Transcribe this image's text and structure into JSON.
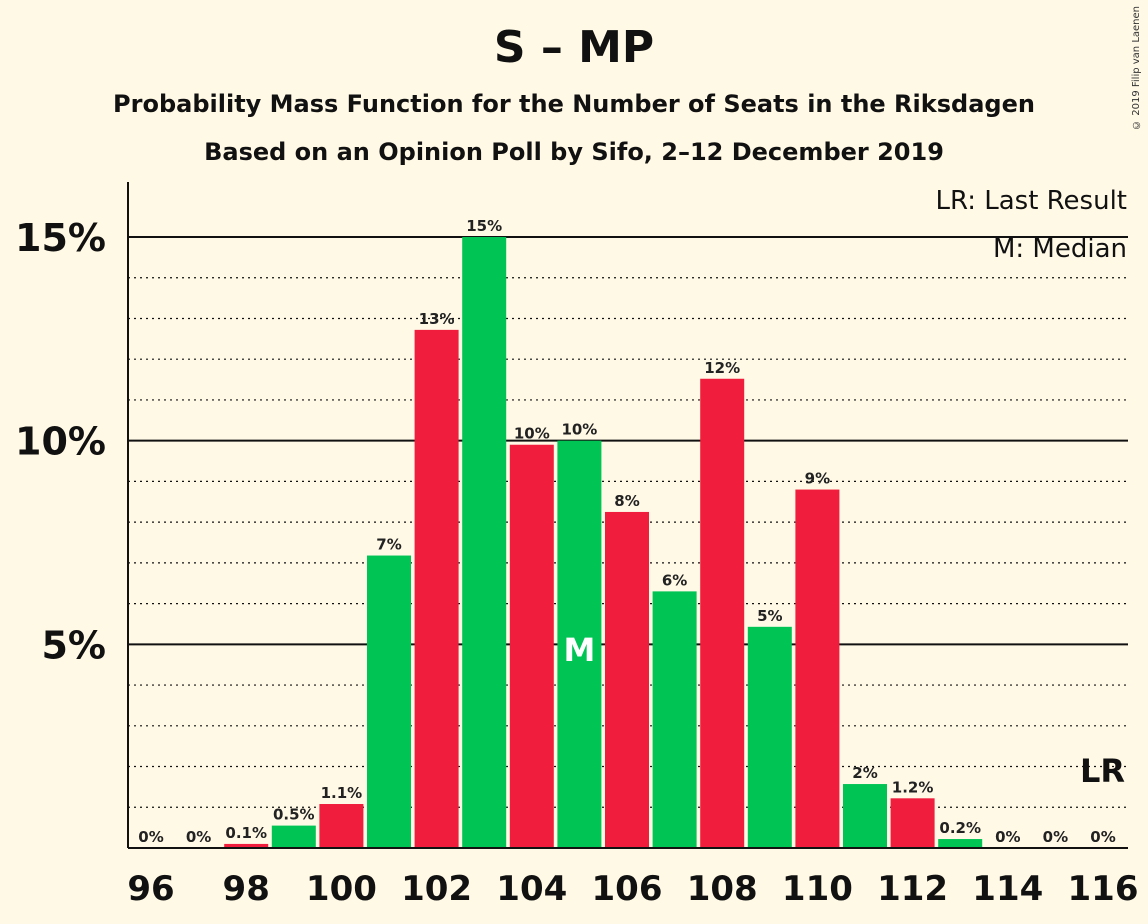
{
  "header": {
    "title": "S – MP",
    "subtitle_line1": "Probability Mass Function for the Number of Seats in the Riksdagen",
    "subtitle_line2": "Based on an Opinion Poll by Sifo, 2–12 December 2019",
    "copyright": "© 2019 Filip van Laenen"
  },
  "legend": {
    "last_result": "LR: Last Result",
    "median": "M: Median",
    "lr_marker": "LR",
    "median_marker": "M"
  },
  "colors": {
    "green": "#00c454",
    "red": "#f01e3c",
    "background": "#fff9e6"
  },
  "chart_data": {
    "type": "bar",
    "categories": [
      96,
      97,
      98,
      99,
      100,
      101,
      102,
      103,
      104,
      105,
      106,
      107,
      108,
      109,
      110,
      111,
      112,
      113,
      114,
      115,
      116
    ],
    "values": [
      0,
      0,
      0.1,
      0.55,
      1.08,
      7.18,
      12.72,
      15.0,
      9.9,
      10.0,
      8.25,
      6.3,
      11.52,
      5.43,
      8.8,
      1.57,
      1.22,
      0.22,
      0,
      0,
      0
    ],
    "data_labels": [
      "0%",
      "0%",
      "0.1%",
      "0.5%",
      "1.1%",
      "7%",
      "13%",
      "15%",
      "10%",
      "10%",
      "8%",
      "6%",
      "12%",
      "5%",
      "9%",
      "2%",
      "1.2%",
      "0.2%",
      "0%",
      "0%",
      "0%"
    ],
    "bar_colors": [
      "red",
      "green",
      "red",
      "green",
      "red",
      "green",
      "red",
      "green",
      "red",
      "green",
      "red",
      "green",
      "red",
      "green",
      "red",
      "green",
      "red",
      "green",
      "red",
      "green",
      "red"
    ],
    "x_tick_labels": [
      "96",
      "98",
      "100",
      "102",
      "104",
      "106",
      "108",
      "110",
      "112",
      "114",
      "116"
    ],
    "y_tick_labels": [
      "5%",
      "10%",
      "15%"
    ],
    "y_ticks": [
      5,
      10,
      15
    ],
    "ylim": [
      0,
      16.3
    ],
    "median_seat": 105,
    "last_result_seat": 116,
    "grid": true
  }
}
